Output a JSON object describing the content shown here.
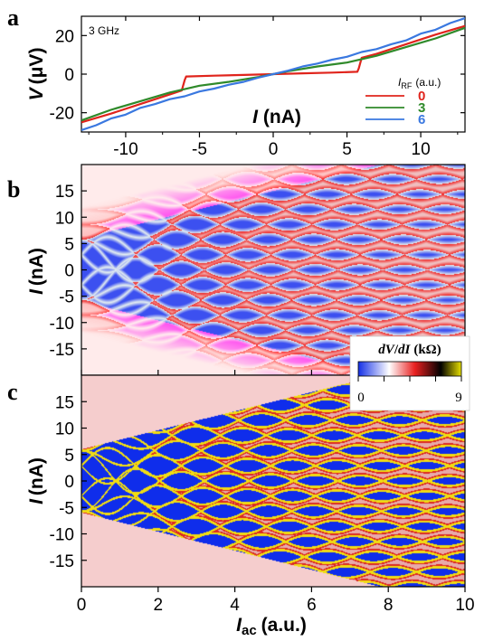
{
  "chart_data": [
    {
      "panel": "a",
      "type": "line",
      "annotation": "3 GHz",
      "xlabel": "I (nA)",
      "ylabel": "V (μV)",
      "xlim": [
        -13,
        13
      ],
      "ylim": [
        -30,
        30
      ],
      "xticks": [
        -10,
        -5,
        0,
        5,
        10
      ],
      "yticks": [
        -20,
        0,
        20
      ],
      "legend_title": "I_RF (a.u.)",
      "legend_placement": "right",
      "series": [
        {
          "name": "0",
          "color": "#e0241c",
          "x": [
            -13,
            -11,
            -9,
            -7,
            -6.2,
            -6.0,
            -5.9,
            -4,
            -2,
            0,
            2,
            4,
            5.7,
            5.8,
            6.0,
            7,
            9,
            11,
            13
          ],
          "y": [
            -25,
            -20.5,
            -15.5,
            -10.5,
            -8.5,
            -3,
            -1.2,
            -0.8,
            -0.4,
            0,
            0.4,
            0.8,
            1.2,
            3,
            8.5,
            10.5,
            15.5,
            20.5,
            25
          ]
        },
        {
          "name": "3",
          "color": "#2f8a2a",
          "x": [
            -13,
            -11,
            -9,
            -7,
            -5,
            -3,
            -1,
            0,
            1,
            3,
            5,
            7,
            9,
            11,
            13
          ],
          "y": [
            -24,
            -18.5,
            -14,
            -9.5,
            -6,
            -4,
            -1.5,
            0,
            1.5,
            4,
            6,
            9.5,
            14,
            18.5,
            24
          ]
        },
        {
          "name": "6",
          "color": "#3a78e0",
          "x": [
            -13,
            -12,
            -11,
            -10,
            -9,
            -8,
            -7,
            -6,
            -5,
            -4,
            -3,
            -2,
            -1,
            0,
            1,
            2,
            3,
            4,
            5,
            6,
            7,
            8,
            9,
            10,
            11,
            12,
            13
          ],
          "y": [
            -29,
            -26.5,
            -23,
            -21,
            -17.5,
            -15.5,
            -13,
            -11.5,
            -9,
            -7.5,
            -5.5,
            -4,
            -1.8,
            0,
            1.8,
            4,
            5.5,
            7.5,
            9,
            11.5,
            13,
            15.5,
            17.5,
            21,
            23,
            26.5,
            29
          ]
        }
      ]
    },
    {
      "panel": "b",
      "type": "heatmap",
      "ylabel": "I (nA)",
      "xlim": [
        0,
        10
      ],
      "ylim": [
        -20,
        20
      ],
      "yticks": [
        -15,
        -10,
        -5,
        0,
        5,
        10,
        15
      ],
      "quantity": "dV/dI",
      "model": "Shapiro-step lobes: n-th step width ∝ |J_n(k·I_ac)|, center at n·Δ",
      "step_spacing_nA": 2.87,
      "colormap": "blue-white-red"
    },
    {
      "panel": "c",
      "type": "heatmap",
      "xlabel": "I_ac (a.u.)",
      "ylabel": "I (nA)",
      "xlim": [
        0,
        10
      ],
      "ylim": [
        -20,
        20
      ],
      "xticks": [
        0,
        2,
        4,
        6,
        8,
        10
      ],
      "yticks": [
        -15,
        -10,
        -5,
        0,
        5,
        10,
        15
      ],
      "quantity": "dV/dI",
      "step_spacing_nA": 2.87,
      "colormap": "blue-white-red-black-yellow"
    }
  ],
  "colorbar": {
    "label": "dV/dI (kΩ)",
    "min": 0,
    "max": 9,
    "stops": [
      "#1430e6",
      "#ffffff",
      "#e82020",
      "#000000",
      "#e8e000"
    ]
  },
  "labels": {
    "panel_a": "a",
    "panel_b": "b",
    "panel_c": "c",
    "freq": "3 GHz",
    "a_ylabel_main": "V",
    "a_ylabel_unit": "(μV)",
    "a_xlabel_main": "I",
    "a_xlabel_unit": "(nA)",
    "b_ylabel_main": "I",
    "b_ylabel_unit": "(nA)",
    "c_ylabel_main": "I",
    "c_ylabel_unit": "(nA)",
    "c_xlabel_main": "I",
    "c_xlabel_sub": "ac",
    "c_xlabel_unit": "(a.u.)",
    "legend_title_main": "I",
    "legend_title_sub": "RF",
    "legend_title_unit": "(a.u.)",
    "cbar_title_a": "dV",
    "cbar_title_b": "/",
    "cbar_title_c": "dI",
    "cbar_title_unit": "(kΩ)",
    "cbar_min": "0",
    "cbar_max": "9"
  }
}
